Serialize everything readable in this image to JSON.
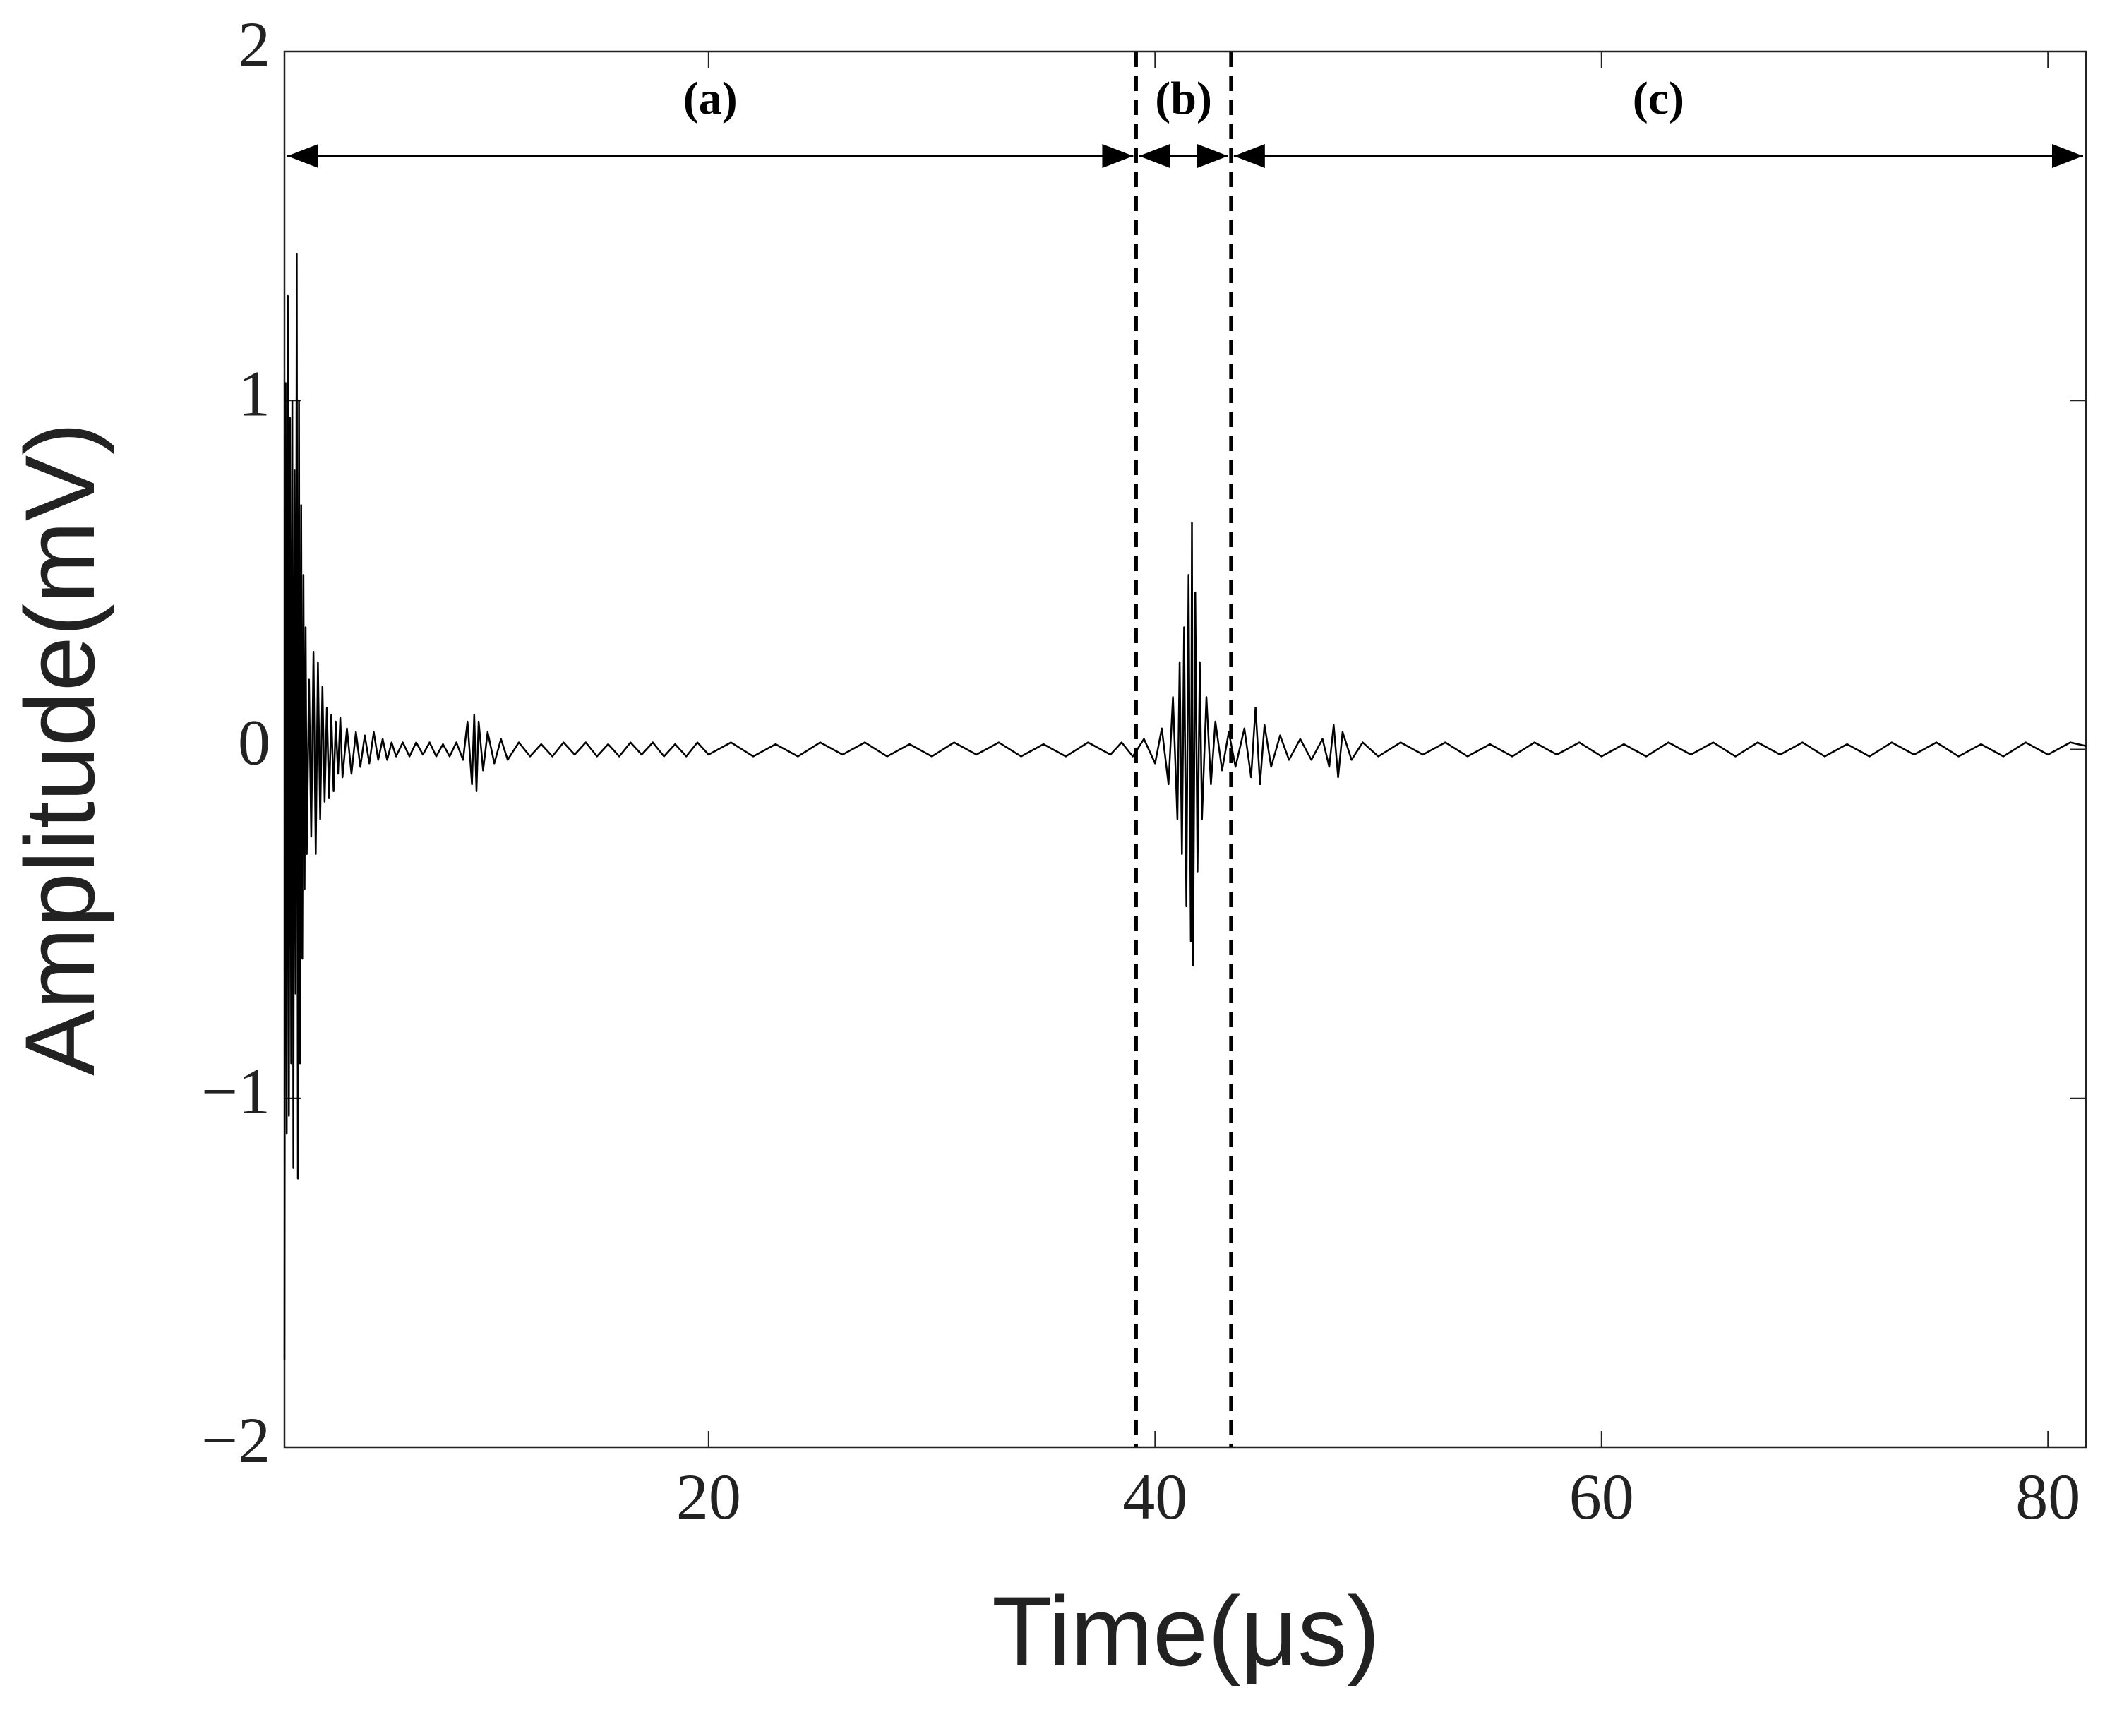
{
  "chart_data": {
    "type": "line",
    "xlabel": "Time(μs)",
    "ylabel": "Amplitude(mV)",
    "xlim": [
      1,
      81.7
    ],
    "ylim": [
      -2,
      2
    ],
    "xticks": [
      20,
      40,
      60,
      80
    ],
    "yticks": [
      {
        "value": -2,
        "label": "−2"
      },
      {
        "value": -1,
        "label": "−1"
      },
      0,
      1,
      2
    ],
    "color": "#000000",
    "regions": [
      {
        "label": "(a)",
        "start": 1,
        "end": 39.15
      },
      {
        "label": "(b)",
        "start": 39.15,
        "end": 43.4
      },
      {
        "label": "(c)",
        "start": 43.4,
        "end": 81.7
      }
    ],
    "x": [
      1.0,
      1.05,
      1.1,
      1.15,
      1.2,
      1.25,
      1.3,
      1.35,
      1.4,
      1.45,
      1.5,
      1.55,
      1.6,
      1.65,
      1.7,
      1.75,
      1.8,
      1.85,
      1.9,
      1.95,
      2.0,
      2.1,
      2.2,
      2.3,
      2.4,
      2.5,
      2.6,
      2.7,
      2.8,
      2.9,
      3.0,
      3.1,
      3.2,
      3.3,
      3.4,
      3.5,
      3.6,
      3.8,
      4.0,
      4.2,
      4.4,
      4.6,
      4.8,
      5.0,
      5.2,
      5.4,
      5.6,
      5.8,
      6.0,
      6.3,
      6.6,
      6.9,
      7.2,
      7.5,
      7.8,
      8.1,
      8.4,
      8.7,
      9.0,
      9.2,
      9.4,
      9.5,
      9.6,
      9.7,
      9.9,
      10.1,
      10.4,
      10.7,
      11,
      11.5,
      12,
      12.5,
      13,
      13.5,
      14,
      14.5,
      15,
      15.5,
      16,
      16.5,
      17,
      17.5,
      18,
      18.5,
      19,
      19.5,
      20,
      21,
      22,
      23,
      24,
      25,
      26,
      27,
      28,
      29,
      30,
      31,
      32,
      33,
      34,
      35,
      36,
      37,
      38,
      38.5,
      39,
      39.5,
      40,
      40.3,
      40.6,
      40.8,
      41.0,
      41.1,
      41.2,
      41.3,
      41.4,
      41.5,
      41.6,
      41.65,
      41.7,
      41.8,
      41.9,
      42.0,
      42.1,
      42.3,
      42.5,
      42.7,
      43.0,
      43.3,
      43.6,
      44.0,
      44.3,
      44.5,
      44.7,
      44.9,
      45.2,
      45.6,
      46,
      46.5,
      47,
      47.5,
      47.8,
      48.0,
      48.2,
      48.4,
      48.8,
      49.3,
      50,
      51,
      52,
      53,
      54,
      55,
      56,
      57,
      58,
      59,
      60,
      61,
      62,
      63,
      64,
      65,
      66,
      67,
      68,
      69,
      70,
      71,
      72,
      73,
      74,
      75,
      76,
      77,
      78,
      79,
      80,
      81,
      81.7
    ],
    "values": [
      -1.75,
      1.05,
      -1.1,
      1.3,
      -1.05,
      0.95,
      -0.9,
      1.0,
      -1.2,
      0.8,
      -0.7,
      1.42,
      -1.23,
      1.0,
      -0.9,
      0.7,
      -0.6,
      0.5,
      -0.4,
      0.35,
      -0.3,
      0.2,
      -0.25,
      0.28,
      -0.3,
      0.25,
      -0.2,
      0.18,
      -0.15,
      0.12,
      -0.14,
      0.1,
      -0.12,
      0.08,
      -0.07,
      0.09,
      -0.08,
      0.06,
      -0.07,
      0.05,
      -0.05,
      0.04,
      -0.04,
      0.05,
      -0.03,
      0.03,
      -0.03,
      0.02,
      -0.02,
      0.02,
      -0.02,
      0.02,
      -0.015,
      0.02,
      -0.02,
      0.015,
      -0.02,
      0.02,
      -0.03,
      0.08,
      -0.1,
      0.1,
      -0.12,
      0.08,
      -0.06,
      0.05,
      -0.04,
      0.03,
      -0.03,
      0.02,
      -0.02,
      0.015,
      -0.02,
      0.02,
      -0.015,
      0.02,
      -0.02,
      0.015,
      -0.02,
      0.02,
      -0.015,
      0.02,
      -0.02,
      0.015,
      -0.02,
      0.02,
      -0.015,
      0.02,
      -0.02,
      0.015,
      -0.02,
      0.02,
      -0.015,
      0.02,
      -0.02,
      0.015,
      -0.02,
      0.02,
      -0.015,
      0.02,
      -0.02,
      0.015,
      -0.02,
      0.02,
      -0.015,
      0.02,
      -0.02,
      0.03,
      -0.04,
      0.06,
      -0.1,
      0.15,
      -0.2,
      0.25,
      -0.3,
      0.35,
      -0.45,
      0.5,
      -0.55,
      0.65,
      -0.62,
      0.45,
      -0.35,
      0.25,
      -0.2,
      0.15,
      -0.1,
      0.08,
      -0.06,
      0.05,
      -0.05,
      0.06,
      -0.08,
      0.12,
      -0.1,
      0.07,
      -0.05,
      0.04,
      -0.03,
      0.03,
      -0.03,
      0.03,
      -0.05,
      0.07,
      -0.08,
      0.05,
      -0.03,
      0.02,
      -0.02,
      0.02,
      -0.015,
      0.02,
      -0.02,
      0.015,
      -0.02,
      0.02,
      -0.015,
      0.02,
      -0.02,
      0.015,
      -0.02,
      0.02,
      -0.015,
      0.02,
      -0.02,
      0.02,
      -0.015,
      0.02,
      -0.02,
      0.015,
      -0.02,
      0.02,
      -0.015,
      0.02,
      -0.02,
      0.015,
      -0.02,
      0.02,
      -0.015,
      0.02,
      0.01
    ]
  }
}
